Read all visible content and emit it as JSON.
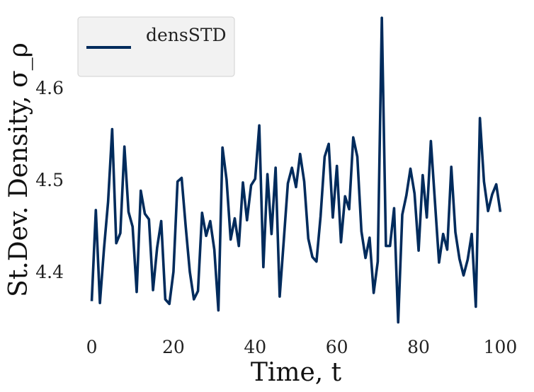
{
  "chart_data": {
    "type": "line",
    "xlabel": "Time, t",
    "ylabel": "St.Dev. Density, σ_ρ",
    "xlim": [
      -2,
      102
    ],
    "ylim": [
      4.34,
      4.68
    ],
    "xticks": [
      0,
      20,
      40,
      60,
      80,
      100
    ],
    "yticks": [
      4.4,
      4.5,
      4.6
    ],
    "ytick_labels": [
      "4.4",
      "4.5",
      "4.6"
    ],
    "grid": false,
    "legend_position": "top-left",
    "series": [
      {
        "name": "densSTD",
        "color": "#002b5c",
        "x": [
          0,
          1,
          2,
          3,
          4,
          5,
          6,
          7,
          8,
          9,
          10,
          11,
          12,
          13,
          14,
          15,
          16,
          17,
          18,
          19,
          20,
          21,
          22,
          23,
          24,
          25,
          26,
          27,
          28,
          29,
          30,
          31,
          32,
          33,
          34,
          35,
          36,
          37,
          38,
          39,
          40,
          41,
          42,
          43,
          44,
          45,
          46,
          47,
          48,
          49,
          50,
          51,
          52,
          53,
          54,
          55,
          56,
          57,
          58,
          59,
          60,
          61,
          62,
          63,
          64,
          65,
          66,
          67,
          68,
          69,
          70,
          71,
          72,
          73,
          74,
          75,
          76,
          77,
          78,
          79,
          80,
          81,
          82,
          83,
          84,
          85,
          86,
          87,
          88,
          89,
          90,
          91,
          92,
          93,
          94,
          95,
          96,
          97,
          98,
          99,
          100
        ],
        "values": [
          4.368,
          4.467,
          4.366,
          4.425,
          4.476,
          4.555,
          4.431,
          4.442,
          4.536,
          4.465,
          4.449,
          4.378,
          4.488,
          4.463,
          4.457,
          4.38,
          4.426,
          4.455,
          4.37,
          4.365,
          4.4,
          4.498,
          4.502,
          4.449,
          4.4,
          4.37,
          4.379,
          4.464,
          4.439,
          4.455,
          4.424,
          4.358,
          4.535,
          4.5,
          4.435,
          4.458,
          4.428,
          4.497,
          4.456,
          4.494,
          4.501,
          4.559,
          4.405,
          4.506,
          4.441,
          4.513,
          4.373,
          4.434,
          4.496,
          4.513,
          4.492,
          4.528,
          4.498,
          4.436,
          4.416,
          4.411,
          4.46,
          4.525,
          4.539,
          4.459,
          4.515,
          4.432,
          4.482,
          4.468,
          4.546,
          4.525,
          4.444,
          4.415,
          4.437,
          4.377,
          4.411,
          4.676,
          4.428,
          4.428,
          4.469,
          4.345,
          4.462,
          4.483,
          4.512,
          4.485,
          4.423,
          4.505,
          4.459,
          4.542,
          4.476,
          4.41,
          4.441,
          4.424,
          4.514,
          4.443,
          4.414,
          4.396,
          4.413,
          4.441,
          4.362,
          4.567,
          4.498,
          4.466,
          4.484,
          4.495,
          4.465
        ]
      }
    ]
  }
}
